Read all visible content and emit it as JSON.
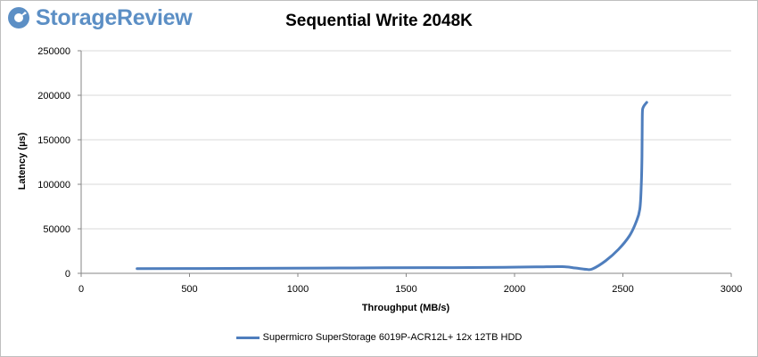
{
  "brand": {
    "name": "StorageReview",
    "accent": "#5c8fc5"
  },
  "chart_data": {
    "type": "line",
    "title": "Sequential Write 2048K",
    "xlabel": "Throughput (MB/s)",
    "ylabel": "Latency (µs)",
    "xlim": [
      0,
      3000
    ],
    "ylim": [
      0,
      250000
    ],
    "xticks": [
      0,
      500,
      1000,
      1500,
      2000,
      2500,
      3000
    ],
    "yticks": [
      0,
      50000,
      100000,
      150000,
      200000,
      250000
    ],
    "grid": "horizontal",
    "legend_position": "bottom",
    "series": [
      {
        "name": "Supermicro SuperStorage 6019P-ACR12L+ 12x 12TB HDD",
        "color": "#4f7ebd",
        "x": [
          258,
          500,
          800,
          1100,
          1400,
          1700,
          1950,
          2100,
          2220,
          2280,
          2330,
          2360,
          2420,
          2480,
          2530,
          2560,
          2578,
          2585,
          2588,
          2589,
          2590,
          2593,
          2600,
          2610
        ],
        "y": [
          5300,
          5400,
          5600,
          5900,
          6200,
          6400,
          6800,
          7200,
          7500,
          6000,
          4500,
          5000,
          14000,
          27000,
          42000,
          57000,
          72000,
          100000,
          130000,
          160000,
          181000,
          186000,
          189000,
          192000
        ]
      }
    ]
  }
}
